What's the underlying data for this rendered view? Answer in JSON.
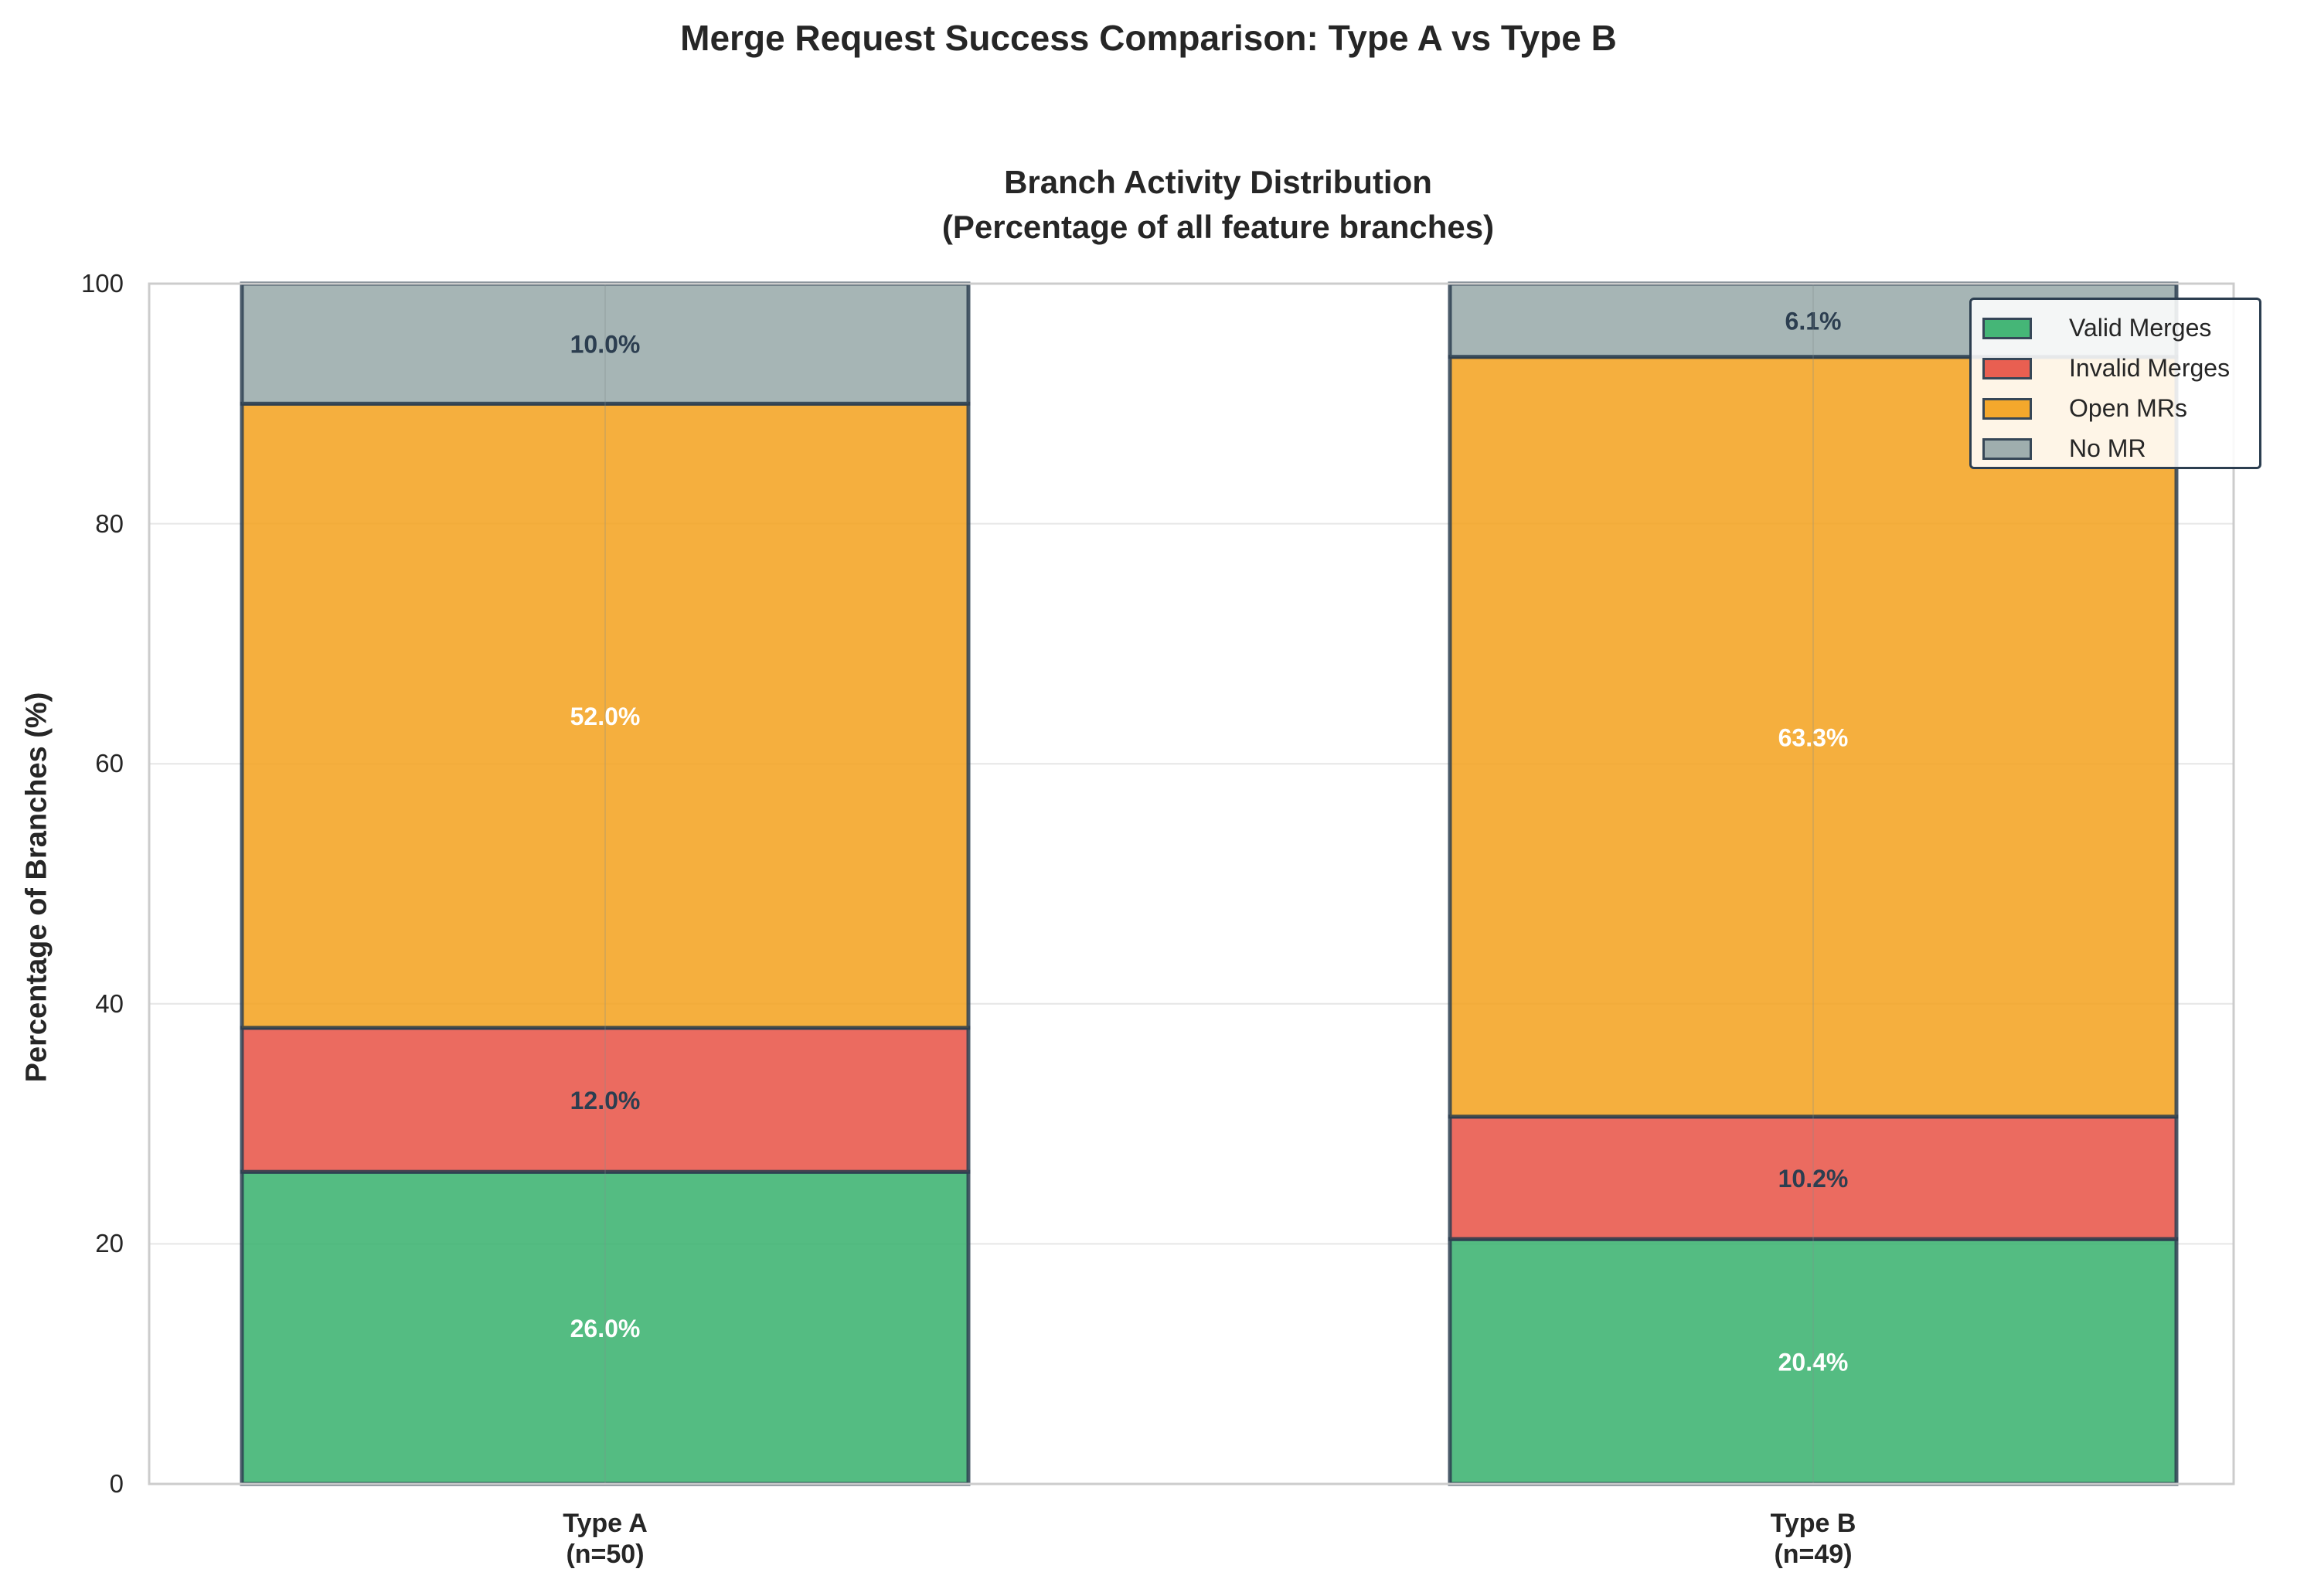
{
  "suptitle": "Merge Request Success Comparison: Type A vs Type B",
  "chart_data": {
    "type": "bar",
    "stacked": true,
    "title_lines": [
      "Branch Activity Distribution",
      "(Percentage of all feature branches)"
    ],
    "xlabel": "",
    "ylabel": "Percentage of Branches (%)",
    "ylim": [
      0,
      100
    ],
    "yticks": [
      "0",
      "20",
      "40",
      "60",
      "80",
      "100"
    ],
    "grid": true,
    "legend_placement": "top-right",
    "categories": [
      {
        "line1": "Type A",
        "line2": "(n=50)"
      },
      {
        "line1": "Type B",
        "line2": "(n=49)"
      }
    ],
    "series": [
      {
        "name": "Valid Merges",
        "color": "#3cb371",
        "label_color": "#ffffff",
        "values": [
          26.0,
          20.4
        ],
        "labels": [
          "26.0%",
          "20.4%"
        ]
      },
      {
        "name": "Invalid Merges",
        "color": "#e8574a",
        "label_color": "#2c3e50",
        "values": [
          12.0,
          10.2
        ],
        "labels": [
          "12.0%",
          "10.2%"
        ]
      },
      {
        "name": "Open MRs",
        "color": "#f4a423",
        "label_color": "#ffffff",
        "values": [
          52.0,
          63.3
        ],
        "labels": [
          "52.0%",
          "63.3%"
        ]
      },
      {
        "name": "No MR",
        "color": "#9aabab",
        "label_color": "#2c3e50",
        "values": [
          10.0,
          6.1
        ],
        "labels": [
          "10.0%",
          "6.1%"
        ]
      }
    ]
  }
}
